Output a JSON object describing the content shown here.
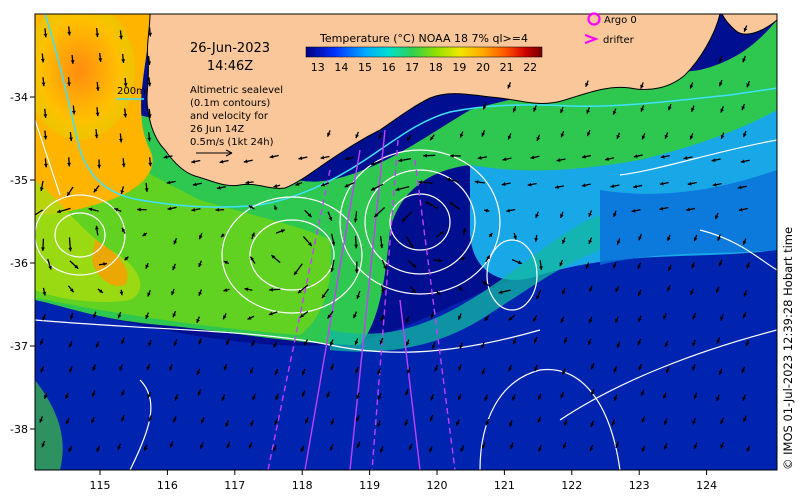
{
  "map": {
    "date": "26-Jun-2023",
    "time": "14:46Z",
    "contour_label": "200m",
    "description_lines": [
      "Altimetric sealevel",
      "(0.1m contours)",
      "and velocity for",
      "26 Jun 14Z",
      "0.5m/s (1kt 24h)"
    ]
  },
  "colorbar": {
    "title": "Temperature (°C) NOAA 18 7% ql>=4",
    "ticks": [
      "13",
      "14",
      "15",
      "16",
      "17",
      "18",
      "19",
      "20",
      "21",
      "22"
    ],
    "range": [
      12.5,
      22.5
    ],
    "colors": [
      "#000080",
      "#0040ff",
      "#00a0ff",
      "#00e0e0",
      "#20d070",
      "#50e000",
      "#b0e000",
      "#ffe000",
      "#ffa000",
      "#ff5000",
      "#c00000",
      "#800000"
    ]
  },
  "legend": {
    "argo_label": "Argo 0",
    "drifter_label": "drifter"
  },
  "axes": {
    "x_ticks": [
      "115",
      "116",
      "117",
      "118",
      "119",
      "120",
      "121",
      "122",
      "123",
      "124"
    ],
    "y_ticks": [
      "-34",
      "-35",
      "-36",
      "-37",
      "-38"
    ]
  },
  "credit": "© IMOS 01-Jul-2023 12:39:28 Hobart time",
  "colors": {
    "land": "#f9c79a",
    "ocean_cold": "#000c8a",
    "contour_200m": "#40e0ff",
    "argo": "#ff00ff",
    "drifter_track": "#c040ff"
  }
}
